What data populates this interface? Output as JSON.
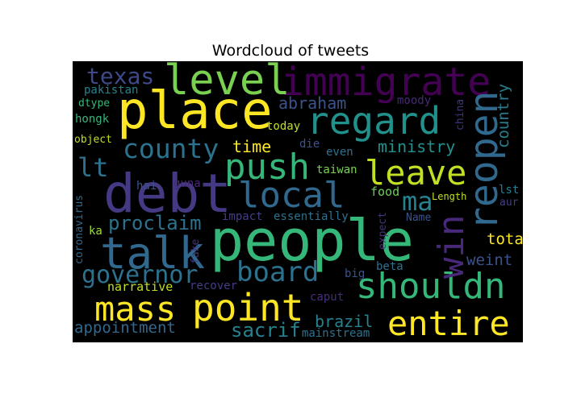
{
  "title": "Wordcloud of tweets",
  "colors": {
    "background": "#000000",
    "page": "#ffffff"
  },
  "words": [
    {
      "text": "people",
      "color": "#35b779"
    },
    {
      "text": "place",
      "color": "#fde725"
    },
    {
      "text": "debt",
      "color": "#443983"
    },
    {
      "text": "immigrate",
      "color": "#440154"
    },
    {
      "text": "talk",
      "color": "#31688e"
    },
    {
      "text": "level",
      "color": "#7ad151"
    },
    {
      "text": "regard",
      "color": "#21918c"
    },
    {
      "text": "point",
      "color": "#fde725"
    },
    {
      "text": "mass",
      "color": "#fde725"
    },
    {
      "text": "push",
      "color": "#35b779"
    },
    {
      "text": "local",
      "color": "#31688e"
    },
    {
      "text": "reopen",
      "color": "#31688e"
    },
    {
      "text": "shouldn",
      "color": "#35b779"
    },
    {
      "text": "leave",
      "color": "#c2df23"
    },
    {
      "text": "entire",
      "color": "#fde725"
    },
    {
      "text": "win",
      "color": "#482878"
    },
    {
      "text": "board",
      "color": "#2c728e"
    },
    {
      "text": "county",
      "color": "#2c728e"
    },
    {
      "text": "governor",
      "color": "#2c728e"
    },
    {
      "text": "lt",
      "color": "#2c728e"
    },
    {
      "text": "texas",
      "color": "#3e4989"
    },
    {
      "text": "proclaim",
      "color": "#2c728e"
    },
    {
      "text": "ma",
      "color": "#26828e"
    },
    {
      "text": "sacrif",
      "color": "#26828e"
    },
    {
      "text": "appointment",
      "color": "#31688e"
    },
    {
      "text": "ministry",
      "color": "#21918c"
    },
    {
      "text": "abraham",
      "color": "#3b528b"
    },
    {
      "text": "brazil",
      "color": "#26828e"
    },
    {
      "text": "time",
      "color": "#fde725"
    },
    {
      "text": "total",
      "color": "#fde725"
    },
    {
      "text": "weint",
      "color": "#3b528b"
    },
    {
      "text": "country",
      "color": "#287d8e"
    },
    {
      "text": "narrative",
      "color": "#c2df23"
    },
    {
      "text": "pakistan",
      "color": "#26828e"
    },
    {
      "text": "hongk",
      "color": "#35b779"
    },
    {
      "text": "dtype",
      "color": "#35b779"
    },
    {
      "text": "object",
      "color": "#c2df23"
    },
    {
      "text": "coronavirus",
      "color": "#31688e"
    },
    {
      "text": "ka",
      "color": "#a0da39"
    },
    {
      "text": "hai",
      "color": "#3b528b"
    },
    {
      "text": "guna",
      "color": "#482878"
    },
    {
      "text": "die",
      "color": "#3b528b"
    },
    {
      "text": "even",
      "color": "#2c728e"
    },
    {
      "text": "today",
      "color": "#c2df23"
    },
    {
      "text": "taiwan",
      "color": "#7ad151"
    },
    {
      "text": "food",
      "color": "#6ece58"
    },
    {
      "text": "moody",
      "color": "#482878"
    },
    {
      "text": "china",
      "color": "#46337e"
    },
    {
      "text": "Length",
      "color": "#c2df23"
    },
    {
      "text": "lst",
      "color": "#287d8e"
    },
    {
      "text": "aur",
      "color": "#433e85"
    },
    {
      "text": "Name",
      "color": "#3b528b"
    },
    {
      "text": "expect",
      "color": "#46337e"
    },
    {
      "text": "impact",
      "color": "#433e85"
    },
    {
      "text": "essentially",
      "color": "#2c728e"
    },
    {
      "text": "fake",
      "color": "#46337e"
    },
    {
      "text": "recover",
      "color": "#433e85"
    },
    {
      "text": "beta",
      "color": "#2c728e"
    },
    {
      "text": "big",
      "color": "#3b528b"
    },
    {
      "text": "caput",
      "color": "#472d7b"
    },
    {
      "text": "mainstream",
      "color": "#2c728e"
    }
  ]
}
